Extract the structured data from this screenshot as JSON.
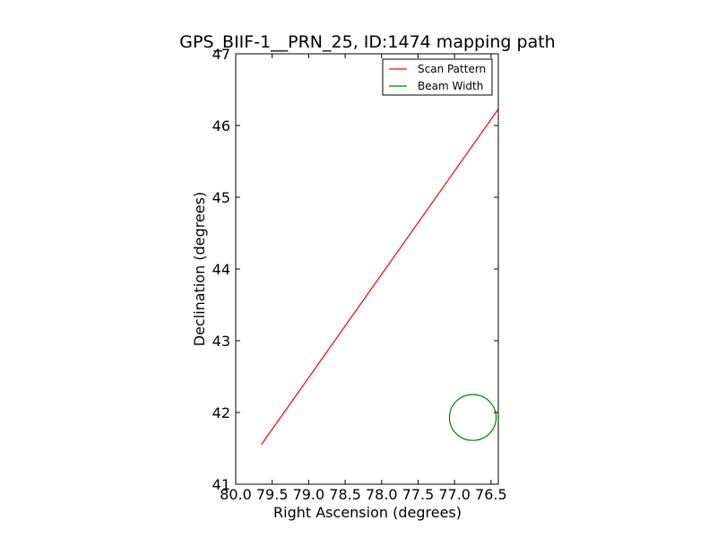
{
  "chart_data": {
    "type": "line",
    "title": "GPS_BIIF-1__PRN_25, ID:1474 mapping path",
    "xlabel": "Right Ascension (degrees)",
    "ylabel": "Declination (degrees)",
    "xlim": [
      80.0,
      76.4
    ],
    "ylim": [
      41,
      47
    ],
    "x_inverted": true,
    "xticks": [
      80.0,
      79.5,
      79.0,
      78.5,
      78.0,
      77.5,
      77.0,
      76.5
    ],
    "xtick_labels": [
      "80.0",
      "79.5",
      "79.0",
      "78.5",
      "78.0",
      "77.5",
      "77.0",
      "76.5"
    ],
    "yticks": [
      41,
      42,
      43,
      44,
      45,
      46,
      47
    ],
    "ytick_labels": [
      "41",
      "42",
      "43",
      "44",
      "45",
      "46",
      "47"
    ],
    "grid": false,
    "legend_position": "top-right",
    "series": [
      {
        "name": "Scan Pattern",
        "kind": "line",
        "color": "#ff0000",
        "x": [
          79.65,
          76.4
        ],
        "y": [
          41.55,
          46.23
        ]
      },
      {
        "name": "Beam Width",
        "kind": "circle",
        "color": "#008000",
        "center_x": 76.75,
        "center_y": 41.93,
        "radius_deg": 0.32
      }
    ]
  }
}
